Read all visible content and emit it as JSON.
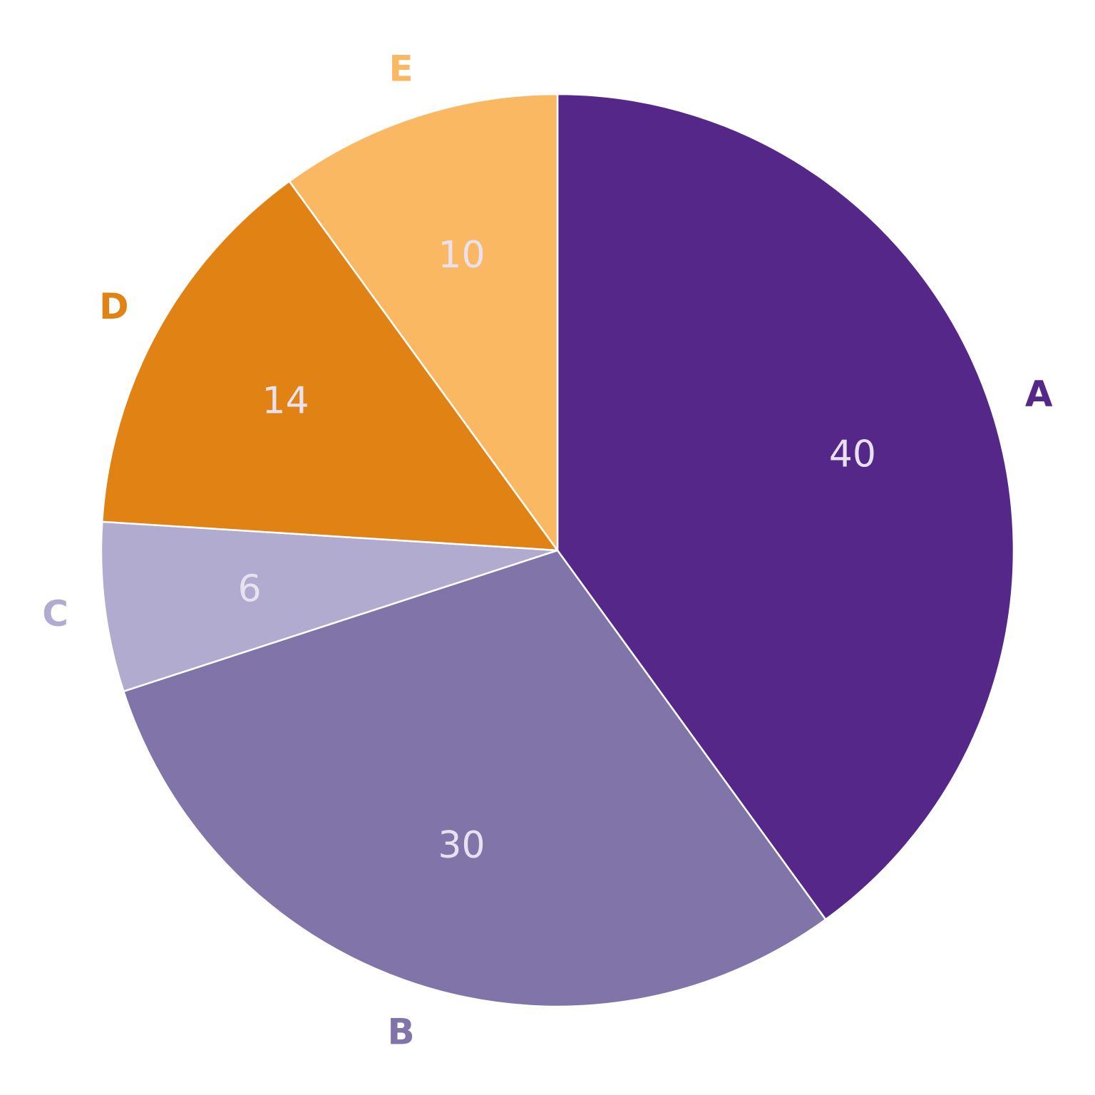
{
  "chart_data": {
    "type": "pie",
    "categories": [
      "A",
      "B",
      "C",
      "D",
      "E"
    ],
    "values": [
      40,
      30,
      6,
      14,
      10
    ],
    "colors": [
      "#552788",
      "#8074a9",
      "#b1abd0",
      "#e08214",
      "#fbb863"
    ],
    "value_label_color": "#e8e2f0",
    "start": "top",
    "direction": "clockwise",
    "legend": "none"
  }
}
